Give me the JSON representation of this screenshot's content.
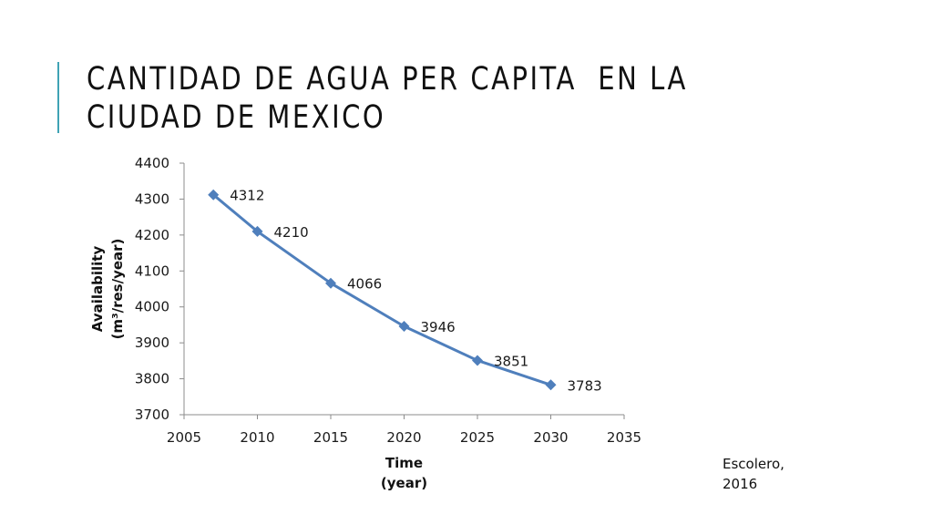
{
  "slide": {
    "title": "CANTIDAD DE AGUA PER CAPITA  EN LA CIUDAD DE MEXICO",
    "credit": "Escolero, 2016",
    "accent_color": "#3fa3b5"
  },
  "chart_data": {
    "type": "line",
    "title": "",
    "xlabel": [
      "Time",
      "(year)"
    ],
    "ylabel": [
      "Availability",
      "(m³/res/year)"
    ],
    "xlim": [
      2005,
      2035
    ],
    "ylim": [
      3700,
      4400
    ],
    "x_ticks": [
      2005,
      2010,
      2015,
      2020,
      2025,
      2030,
      2035
    ],
    "y_ticks": [
      3700,
      3800,
      3900,
      4000,
      4100,
      4200,
      4300,
      4400
    ],
    "series": [
      {
        "color": "#4f7fbc",
        "marker": "diamond",
        "x": [
          2007,
          2010,
          2015,
          2020,
          2025,
          2030
        ],
        "y": [
          4312,
          4210,
          4066,
          3946,
          3851,
          3783
        ],
        "labels": [
          "4312",
          "4210",
          "4066",
          "3946",
          "3851",
          "3783"
        ]
      }
    ],
    "grid": false,
    "legend": "none"
  }
}
